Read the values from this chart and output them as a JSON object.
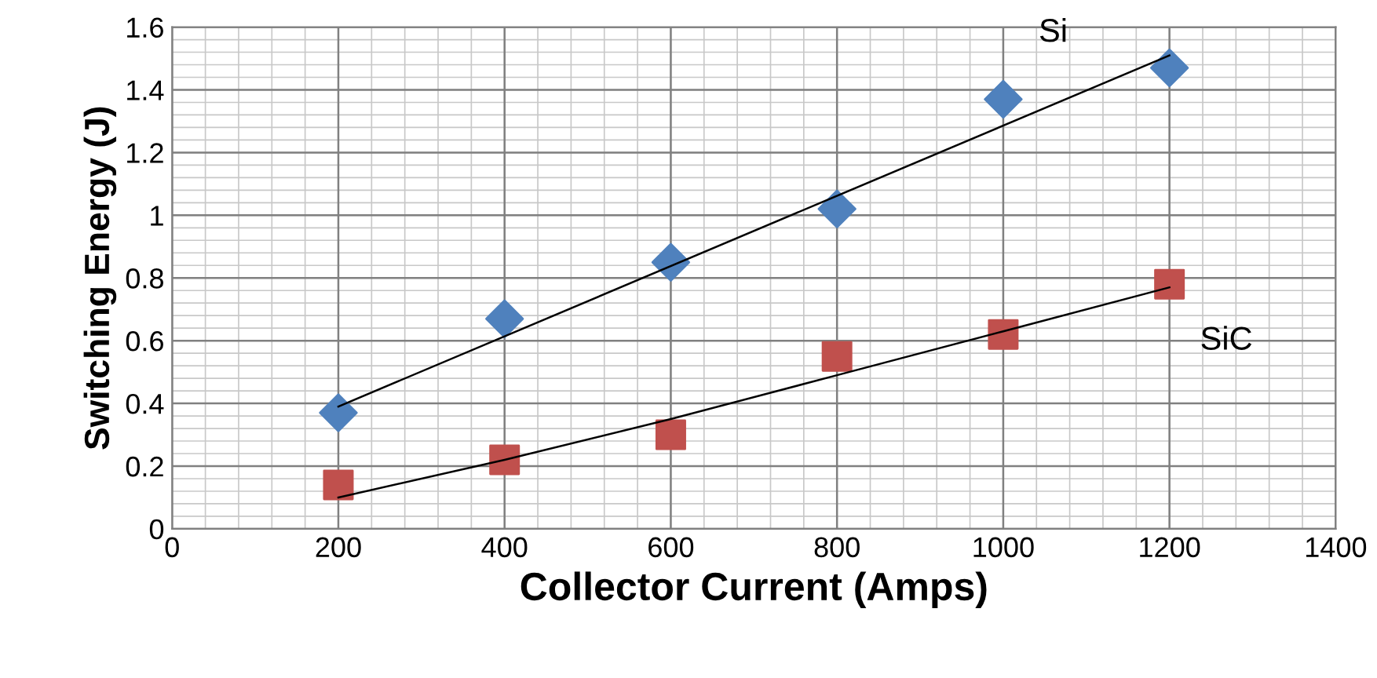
{
  "chart_data": {
    "type": "scatter",
    "xlabel": "Collector Current (Amps)",
    "ylabel": "Switching Energy (J)",
    "series": [
      {
        "name": "Si",
        "color": "#4f81bd",
        "marker": "diamond",
        "x": [
          200,
          400,
          600,
          800,
          1000,
          1200
        ],
        "values": [
          0.37,
          0.67,
          0.85,
          1.02,
          1.37,
          1.47
        ]
      },
      {
        "name": "SiC",
        "color": "#c0504d",
        "marker": "square",
        "x": [
          200,
          400,
          600,
          800,
          1000,
          1200
        ],
        "values": [
          0.14,
          0.22,
          0.3,
          0.55,
          0.62,
          0.78
        ]
      },
      {
        "type": "line",
        "color": "#000000",
        "marker": "none",
        "x": [
          200,
          1200
        ],
        "values": [
          0.39,
          1.51
        ]
      },
      {
        "type": "line",
        "color": "#000000",
        "marker": "none",
        "x": [
          200,
          400,
          600,
          800,
          1000,
          1200
        ],
        "values": [
          0.1,
          0.22,
          0.35,
          0.49,
          0.63,
          0.77
        ]
      }
    ],
    "xlim": [
      0,
      1400
    ],
    "xticks": [
      0,
      200,
      400,
      600,
      800,
      1000,
      1200,
      1400
    ],
    "ylim": [
      0,
      1.6
    ],
    "yticks": [
      0,
      0.2,
      0.4,
      0.6,
      0.8,
      1,
      1.2,
      1.4,
      1.6
    ],
    "grid": true
  }
}
